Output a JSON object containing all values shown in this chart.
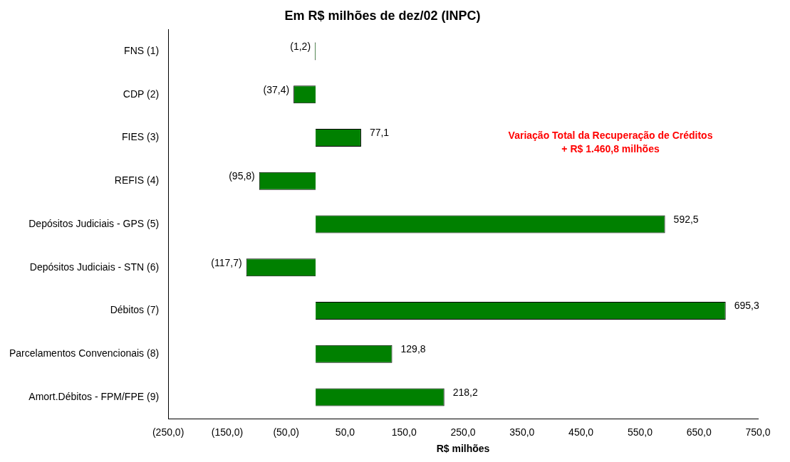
{
  "chart_data": {
    "type": "bar",
    "orientation": "horizontal",
    "title": "Em R$ milhões de dez/02 (INPC)",
    "xlabel": "R$ milhões",
    "categories": [
      "FNS (1)",
      "CDP (2)",
      "FIES (3)",
      "REFIS (4)",
      "Depósitos Judiciais - GPS (5)",
      "Depósitos Judiciais - STN (6)",
      "Débitos (7)",
      "Parcelamentos Convencionais (8)",
      "Amort.Débitos - FPM/FPE (9)"
    ],
    "values": [
      -1.2,
      -37.4,
      77.1,
      -95.8,
      592.5,
      -117.7,
      695.3,
      129.8,
      218.2
    ],
    "value_labels": [
      "(1,2)",
      "(37,4)",
      "77,1",
      "(95,8)",
      "592,5",
      "(117,7)",
      "695,3",
      "129,8",
      "218,2"
    ],
    "color": "#008000",
    "xlim": [
      -250,
      750
    ],
    "xticks": [
      {
        "value": -250,
        "label": "(250,0)"
      },
      {
        "value": -150,
        "label": "(150,0)"
      },
      {
        "value": -50,
        "label": "(50,0)"
      },
      {
        "value": 50,
        "label": "50,0"
      },
      {
        "value": 150,
        "label": "150,0"
      },
      {
        "value": 250,
        "label": "250,0"
      },
      {
        "value": 350,
        "label": "350,0"
      },
      {
        "value": 450,
        "label": "450,0"
      },
      {
        "value": 550,
        "label": "550,0"
      },
      {
        "value": 650,
        "label": "650,0"
      },
      {
        "value": 750,
        "label": "750,0"
      }
    ],
    "annotations": [
      "Variação Total da Recuperação de Créditos",
      "+ R$ 1.460,8 milhões"
    ],
    "grid": false,
    "legend": false
  }
}
